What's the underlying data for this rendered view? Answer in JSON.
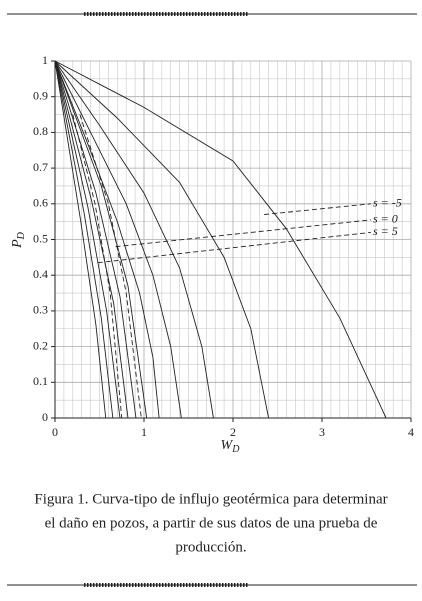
{
  "chart_data": {
    "type": "line",
    "xlabel": "W",
    "xlabel_subscript": "D",
    "ylabel": "P",
    "ylabel_subscript": "D",
    "xlim": [
      0,
      4
    ],
    "xticks": [
      0,
      1,
      2,
      3,
      4
    ],
    "ylim": [
      0,
      1
    ],
    "yticks": [
      0,
      0.1,
      0.2,
      0.3,
      0.4,
      0.5,
      0.6,
      0.7,
      0.8,
      0.9,
      1
    ],
    "grid": true,
    "series": [
      {
        "color": "#222",
        "style": "solid",
        "x": [
          0,
          0.29,
          0.46,
          0.57
        ],
        "values": [
          1,
          0.55,
          0.26,
          0
        ]
      },
      {
        "color": "#222",
        "style": "solid",
        "x": [
          0,
          0.33,
          0.52,
          0.65
        ],
        "values": [
          1,
          0.57,
          0.28,
          0
        ]
      },
      {
        "color": "#222",
        "style": "solid",
        "x": [
          0,
          0.37,
          0.58,
          0.73
        ],
        "values": [
          1,
          0.59,
          0.3,
          0
        ]
      },
      {
        "color": "#222",
        "style": "solid",
        "x": [
          0,
          0.41,
          0.66,
          0.82
        ],
        "values": [
          1,
          0.61,
          0.32,
          0
        ]
      },
      {
        "color": "#222",
        "style": "solid",
        "x": [
          0,
          0.46,
          0.73,
          0.91
        ],
        "values": [
          1,
          0.63,
          0.34,
          0
        ]
      },
      {
        "color": "#222",
        "style": "solid",
        "x": [
          0,
          0.52,
          0.82,
          1.03
        ],
        "values": [
          1,
          0.65,
          0.37,
          0
        ]
      },
      {
        "color": "#222",
        "style": "solid",
        "x": [
          0,
          0.35,
          0.7,
          0.95,
          1.1,
          1.17
        ],
        "values": [
          1,
          0.78,
          0.55,
          0.35,
          0.17,
          0
        ]
      },
      {
        "color": "#222",
        "style": "solid",
        "x": [
          0,
          0.4,
          0.8,
          1.1,
          1.3,
          1.42
        ],
        "values": [
          1,
          0.8,
          0.6,
          0.4,
          0.2,
          0
        ]
      },
      {
        "color": "#222",
        "style": "solid",
        "x": [
          0,
          0.5,
          1.0,
          1.4,
          1.65,
          1.78
        ],
        "values": [
          1,
          0.82,
          0.63,
          0.42,
          0.2,
          0
        ]
      },
      {
        "color": "#222",
        "style": "solid",
        "x": [
          0,
          0.7,
          1.4,
          1.9,
          2.2,
          2.4
        ],
        "values": [
          1,
          0.84,
          0.66,
          0.45,
          0.25,
          0
        ]
      },
      {
        "color": "#222",
        "style": "solid",
        "x": [
          0,
          1,
          2,
          2.6,
          3.2,
          3.72
        ],
        "values": [
          1,
          0.87,
          0.72,
          0.53,
          0.28,
          0
        ]
      },
      {
        "color": "#222",
        "style": "dashed",
        "x": [
          0.2,
          0.45,
          0.62,
          0.75
        ],
        "values": [
          0.85,
          0.6,
          0.35,
          0
        ]
      },
      {
        "color": "#222",
        "style": "dashed",
        "x": [
          0.28,
          0.6,
          0.8,
          0.97
        ],
        "values": [
          0.85,
          0.6,
          0.35,
          0
        ]
      },
      {
        "name": "s = -5",
        "color": "#222",
        "style": "dashed",
        "x": [
          2.35,
          3.55
        ],
        "values": [
          0.57,
          0.6
        ]
      },
      {
        "name": "s = 0",
        "color": "#222",
        "style": "dashed",
        "x": [
          0.68,
          3.55
        ],
        "values": [
          0.48,
          0.555
        ]
      },
      {
        "name": "s = 5",
        "color": "#222",
        "style": "dashed",
        "x": [
          0.48,
          3.55
        ],
        "values": [
          0.435,
          0.52
        ]
      }
    ]
  },
  "caption": [
    "Figura 1. Curva-tipo de influjo geotérmica para determinar",
    "el daño en pozos, a partir de sus datos de una prueba de",
    "producción."
  ]
}
